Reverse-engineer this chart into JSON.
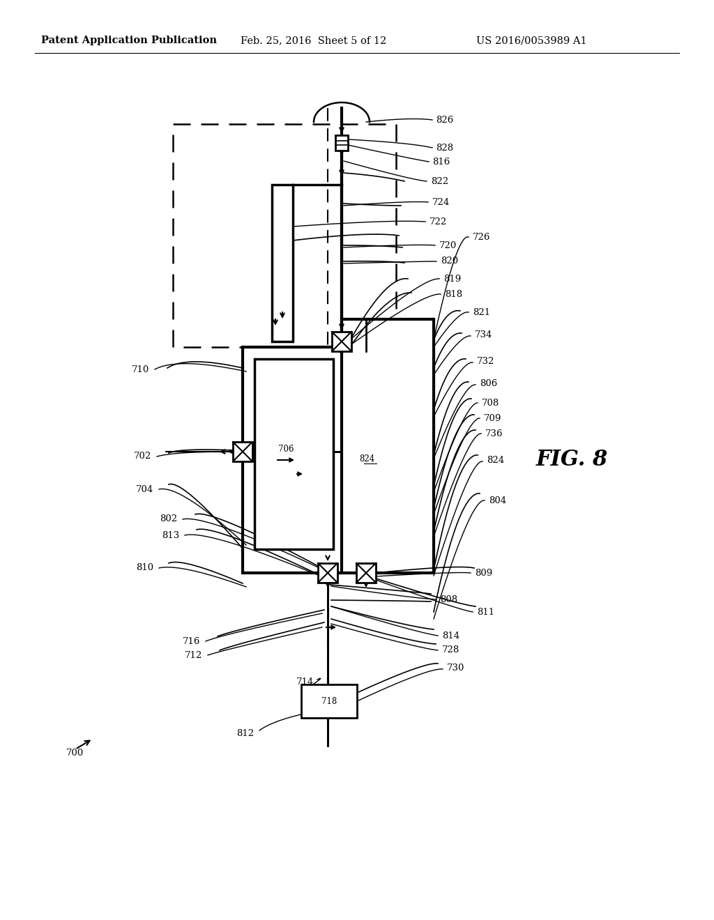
{
  "background": "#ffffff",
  "header_left": "Patent Application Publication",
  "header_mid": "Feb. 25, 2016  Sheet 5 of 12",
  "header_right": "US 2016/0053989 A1",
  "fig_label": "FIG. 8",
  "diagram_label": "700",
  "lfs": 9.5
}
